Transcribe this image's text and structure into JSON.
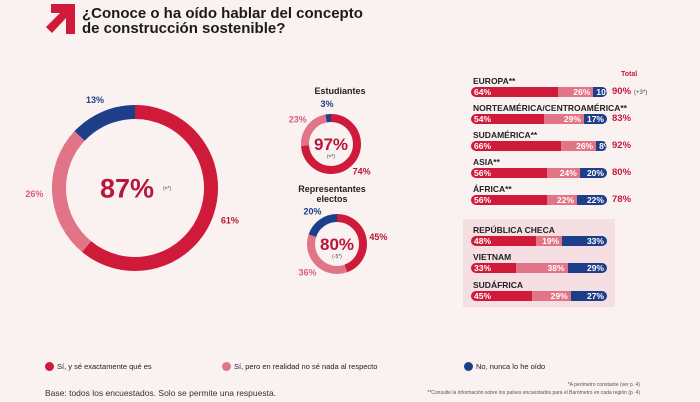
{
  "title": "¿Conoce o ha oído hablar del concepto de construcción sostenible?",
  "colors": {
    "yes_know": "#cf1a3a",
    "yes_not": "#e27487",
    "no": "#1d3f8a",
    "text_red": "#c8193a"
  },
  "chart_data": [
    {
      "type": "pie",
      "variant": "donut",
      "title": "",
      "center_label": "87%",
      "center_note": "(=*)",
      "slices": [
        {
          "name": "Sí, y sé exactamente qué es",
          "value": 61,
          "label": "61%"
        },
        {
          "name": "Sí, pero en realidad no sé nada al respecto",
          "value": 26,
          "label": "26%"
        },
        {
          "name": "No, nunca lo he oído",
          "value": 13,
          "label": "13%"
        }
      ]
    },
    {
      "type": "pie",
      "variant": "donut",
      "title": "Estudiantes",
      "center_label": "97%",
      "center_note": "(=*)",
      "slices": [
        {
          "value": 74,
          "label": "74%"
        },
        {
          "value": 23,
          "label": "23%"
        },
        {
          "value": 3,
          "label": "3%"
        }
      ]
    },
    {
      "type": "pie",
      "variant": "donut",
      "title": "Representantes electos",
      "center_label": "80%",
      "center_note": "(-5*)",
      "slices": [
        {
          "value": 45,
          "label": "45%"
        },
        {
          "value": 36,
          "label": "36%"
        },
        {
          "value": 20,
          "label": "20%"
        }
      ]
    },
    {
      "type": "bar",
      "orientation": "horizontal",
      "stacked": true,
      "total_header": "Total",
      "rows": [
        {
          "name": "EUROPA**",
          "values": [
            64,
            26,
            10
          ],
          "total": "90%",
          "note": "(+3*)"
        },
        {
          "name": "NORTEAMÉRICA/CENTROAMÉRICA**",
          "values": [
            54,
            29,
            17
          ],
          "total": "83%"
        },
        {
          "name": "SUDAMÉRICA**",
          "values": [
            66,
            26,
            8
          ],
          "total": "92%"
        },
        {
          "name": "ASIA**",
          "values": [
            56,
            24,
            20
          ],
          "total": "80%"
        },
        {
          "name": "ÁFRICA**",
          "values": [
            56,
            22,
            22
          ],
          "total": "78%"
        },
        {
          "name": "REPÚBLICA CHECA",
          "values": [
            48,
            19,
            33
          ]
        },
        {
          "name": "VIETNAM",
          "values": [
            33,
            38,
            29
          ]
        },
        {
          "name": "SUDÁFRICA",
          "values": [
            45,
            29,
            27
          ]
        }
      ]
    }
  ],
  "legend": [
    "Sí, y sé exactamente qué es",
    "Sí, pero en realidad no sé nada al respecto",
    "No, nunca lo he oído"
  ],
  "footer": {
    "base": "Base: todos los encuestados. Solo se permite una respuesta.",
    "note1": "*A perímetro constante (ver p. 4)",
    "note2": "**Consulte la información sobre los países encuestados para el Barómetro en cada región (p. 4)"
  }
}
